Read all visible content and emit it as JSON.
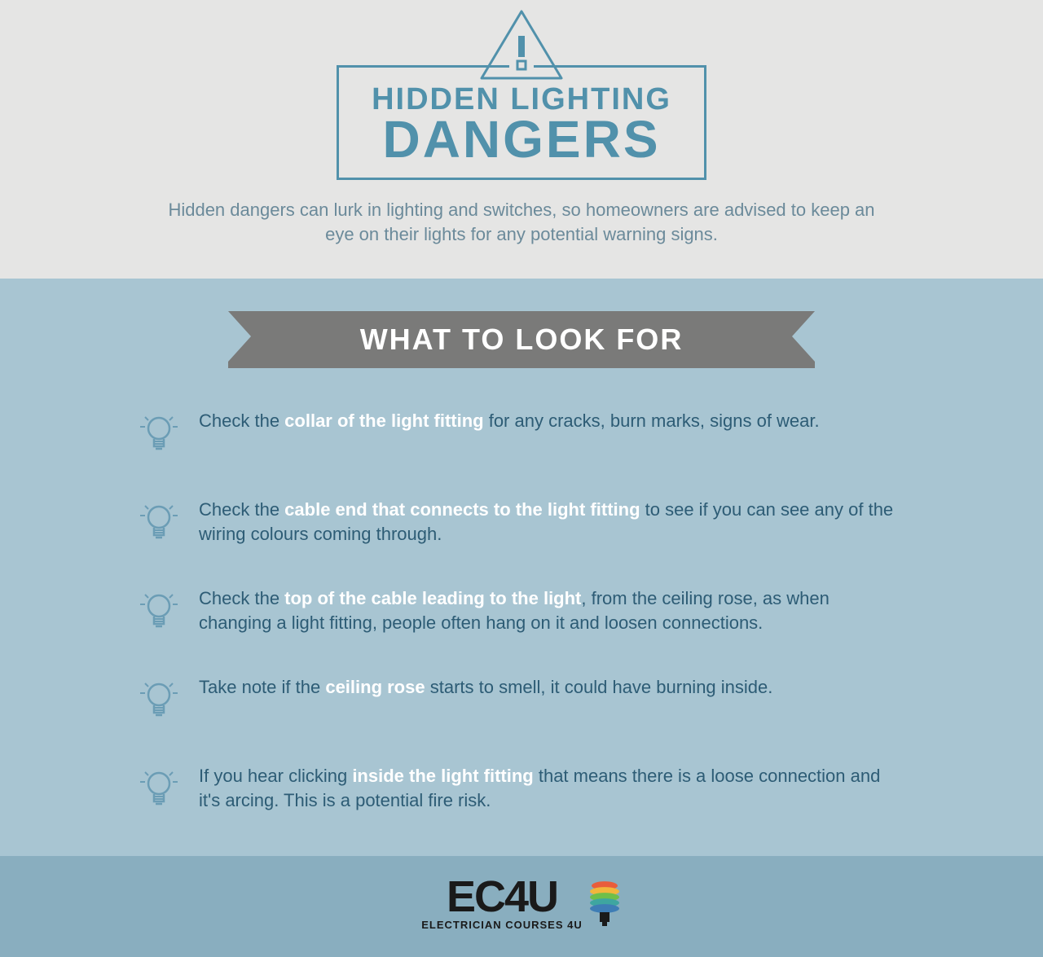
{
  "colors": {
    "page_bg": "#e5e5e4",
    "main_bg": "#a8c5d2",
    "footer_bg": "#89aebf",
    "accent": "#5191ab",
    "banner_bg": "#7a7a79",
    "tip_text": "#2d5c75",
    "highlight": "#ffffff",
    "logo_text": "#1a1a1a"
  },
  "header": {
    "title_line1": "HIDDEN LIGHTING",
    "title_line2": "DANGERS",
    "subtitle": "Hidden dangers can lurk in lighting and switches, so homeowners are advised to keep an eye on their lights for any potential warning signs."
  },
  "banner": {
    "label": "WHAT TO LOOK FOR"
  },
  "tips": [
    {
      "pre": "Check the ",
      "hl": "collar of the light fitting",
      "post": " for any cracks, burn marks, signs of wear."
    },
    {
      "pre": "Check the ",
      "hl": "cable end that connects to the light fitting",
      "post": " to see if you can see any of the wiring colours coming through."
    },
    {
      "pre": "Check the ",
      "hl": "top of the cable leading to the light",
      "post": ", from the ceiling rose, as when changing a light fitting, people often hang on it and loosen connections."
    },
    {
      "pre": "Take note if the ",
      "hl": "ceiling rose",
      "post": " starts to smell, it could have burning inside."
    },
    {
      "pre": "If you hear clicking ",
      "hl": "inside the light fitting",
      "post": " that means there is a loose connection and it's arcing. This is a potential fire risk."
    }
  ],
  "footer": {
    "brand": "EC4U",
    "tagline": "ELECTRICIAN COURSES 4U",
    "bulb_colors": [
      "#e95d3c",
      "#f2b63c",
      "#6fbf4a",
      "#3ea6a0",
      "#3e7db5"
    ]
  }
}
